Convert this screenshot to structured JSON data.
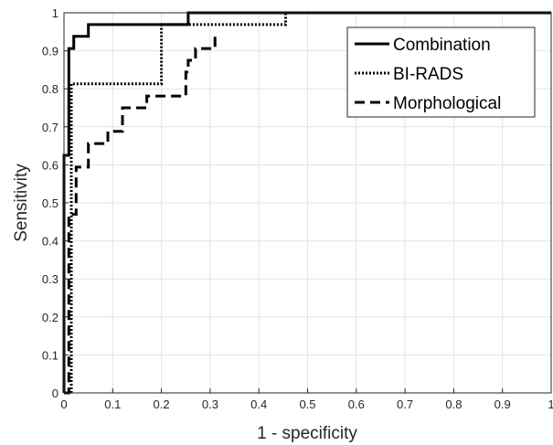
{
  "chart_data": {
    "type": "line",
    "title": "",
    "xlabel": "1 - specificity",
    "ylabel": "Sensitivity",
    "xlim": [
      0,
      1
    ],
    "ylim": [
      0,
      1
    ],
    "grid": true,
    "legend_position": "top-right",
    "x_ticks": [
      "0",
      "0.1",
      "0.2",
      "0.3",
      "0.4",
      "0.5",
      "0.6",
      "0.7",
      "0.8",
      "0.9",
      "1"
    ],
    "y_ticks": [
      "0",
      "0.1",
      "0.2",
      "0.3",
      "0.4",
      "0.5",
      "0.6",
      "0.7",
      "0.8",
      "0.9",
      "1"
    ],
    "series": [
      {
        "name": "Combination",
        "style": "solid",
        "color": "#000000",
        "points": [
          [
            0,
            0
          ],
          [
            0,
            0.625
          ],
          [
            0.01,
            0.625
          ],
          [
            0.01,
            0.906
          ],
          [
            0.02,
            0.906
          ],
          [
            0.02,
            0.938
          ],
          [
            0.05,
            0.938
          ],
          [
            0.05,
            0.969
          ],
          [
            0.255,
            0.969
          ],
          [
            0.255,
            1
          ],
          [
            1,
            1
          ]
        ]
      },
      {
        "name": "BI-RADS",
        "style": "dotted",
        "color": "#000000",
        "points": [
          [
            0,
            0
          ],
          [
            0.015,
            0
          ],
          [
            0.015,
            0.813
          ],
          [
            0.2,
            0.813
          ],
          [
            0.2,
            0.969
          ],
          [
            0.2,
            0.969
          ],
          [
            0.455,
            0.969
          ],
          [
            0.455,
            1
          ],
          [
            1,
            1
          ]
        ]
      },
      {
        "name": "Morphological",
        "style": "dashed",
        "color": "#000000",
        "points": [
          [
            0,
            0
          ],
          [
            0.01,
            0
          ],
          [
            0.01,
            0.47
          ],
          [
            0.025,
            0.47
          ],
          [
            0.025,
            0.594
          ],
          [
            0.05,
            0.594
          ],
          [
            0.05,
            0.656
          ],
          [
            0.09,
            0.656
          ],
          [
            0.09,
            0.688
          ],
          [
            0.12,
            0.688
          ],
          [
            0.12,
            0.75
          ],
          [
            0.17,
            0.75
          ],
          [
            0.17,
            0.781
          ],
          [
            0.25,
            0.781
          ],
          [
            0.25,
            0.844
          ],
          [
            0.255,
            0.844
          ],
          [
            0.255,
            0.875
          ],
          [
            0.27,
            0.875
          ],
          [
            0.27,
            0.906
          ],
          [
            0.31,
            0.906
          ],
          [
            0.31,
            0.938
          ]
        ]
      }
    ]
  }
}
